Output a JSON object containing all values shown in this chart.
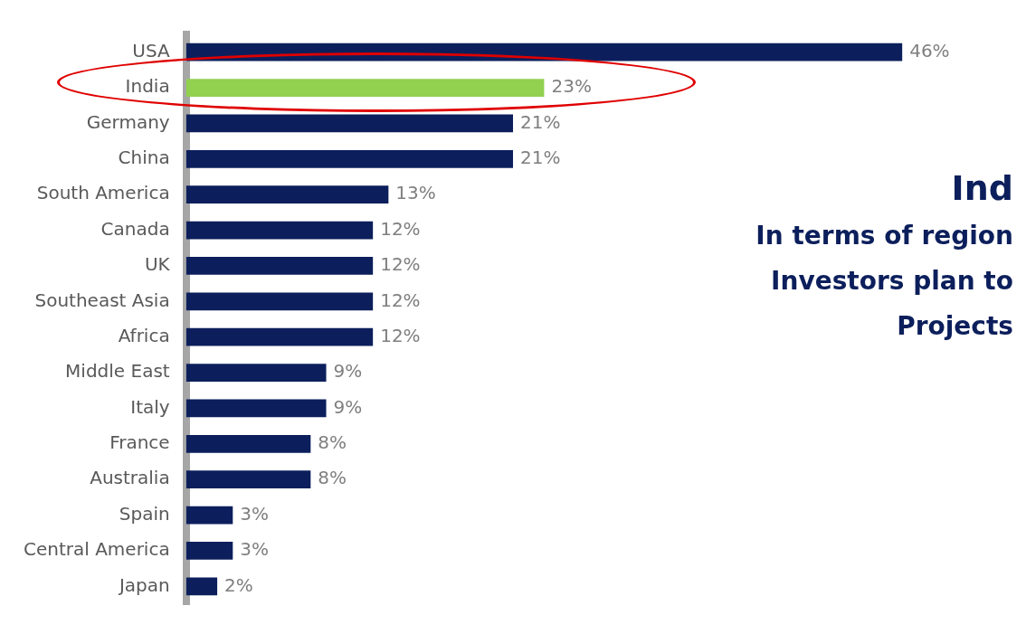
{
  "chart_data": {
    "type": "bar",
    "orientation": "horizontal",
    "title": "Ind",
    "annotations": [
      "In terms of region",
      "Investors plan to",
      "Projects"
    ],
    "categories": [
      "USA",
      "India",
      "Germany",
      "China",
      "South America",
      "Canada",
      "UK",
      "Southeast Asia",
      "Africa",
      "Middle East",
      "Italy",
      "France",
      "Australia",
      "Spain",
      "Central America",
      "Japan"
    ],
    "values": [
      46,
      23,
      21,
      21,
      13,
      12,
      12,
      12,
      12,
      9,
      9,
      8,
      8,
      3,
      3,
      2
    ],
    "value_labels": [
      "46%",
      "23%",
      "21%",
      "21%",
      "13%",
      "12%",
      "12%",
      "12%",
      "12%",
      "9%",
      "9%",
      "8%",
      "8%",
      "3%",
      "3%",
      "2%"
    ],
    "colors": [
      "#0c1f5c",
      "#92d050",
      "#0c1f5c",
      "#0c1f5c",
      "#0c1f5c",
      "#0c1f5c",
      "#0c1f5c",
      "#0c1f5c",
      "#0c1f5c",
      "#0c1f5c",
      "#0c1f5c",
      "#0c1f5c",
      "#0c1f5c",
      "#0c1f5c",
      "#0c1f5c",
      "#0c1f5c"
    ]
  }
}
